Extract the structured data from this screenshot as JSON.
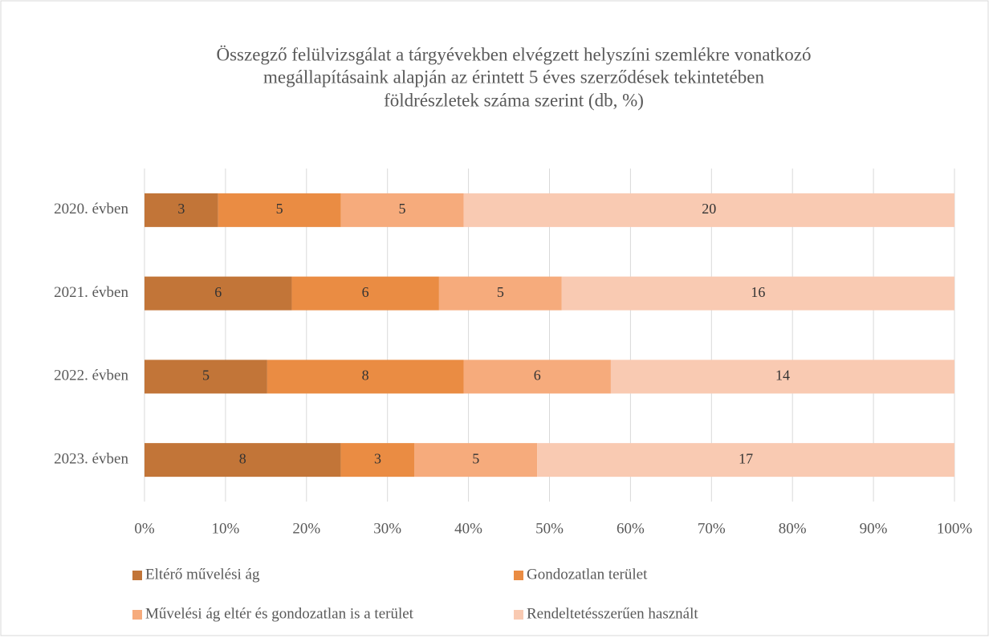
{
  "chart_data": {
    "type": "bar",
    "orientation": "horizontal",
    "stacking": "percent",
    "title": [
      "Összegző felülvizsgálat a tárgyévekben elvégzett helyszíni szemlékre vonatkozó",
      "megállapításaink alapján az érintett 5 éves szerződések tekintetében",
      "földrészletek száma szerint (db, %)"
    ],
    "categories": [
      "2020. évben",
      "2021. évben",
      "2022. évben",
      "2023. évben"
    ],
    "series": [
      {
        "name": "Eltérő művelési ág",
        "color": "#c27538",
        "values": [
          3,
          6,
          5,
          8
        ]
      },
      {
        "name": "Gondozatlan terület",
        "color": "#ea8c43",
        "values": [
          5,
          6,
          8,
          3
        ]
      },
      {
        "name": "Művelési ág eltér és gondozatlan is a terület",
        "color": "#f6ab7c",
        "values": [
          5,
          5,
          6,
          5
        ]
      },
      {
        "name": "Rendeltetésszerűen használt",
        "color": "#f9cab2",
        "values": [
          20,
          16,
          14,
          17
        ]
      }
    ],
    "xlim": [
      0,
      100
    ],
    "xticks": [
      {
        "value": 0,
        "label": "0%"
      },
      {
        "value": 10,
        "label": "10%"
      },
      {
        "value": 20,
        "label": "20%"
      },
      {
        "value": 30,
        "label": "30%"
      },
      {
        "value": 40,
        "label": "40%"
      },
      {
        "value": 50,
        "label": "50%"
      },
      {
        "value": 60,
        "label": "60%"
      },
      {
        "value": 70,
        "label": "70%"
      },
      {
        "value": 80,
        "label": "80%"
      },
      {
        "value": 90,
        "label": "90%"
      },
      {
        "value": 100,
        "label": "100%"
      }
    ],
    "grid": true,
    "legend": "bottom"
  }
}
